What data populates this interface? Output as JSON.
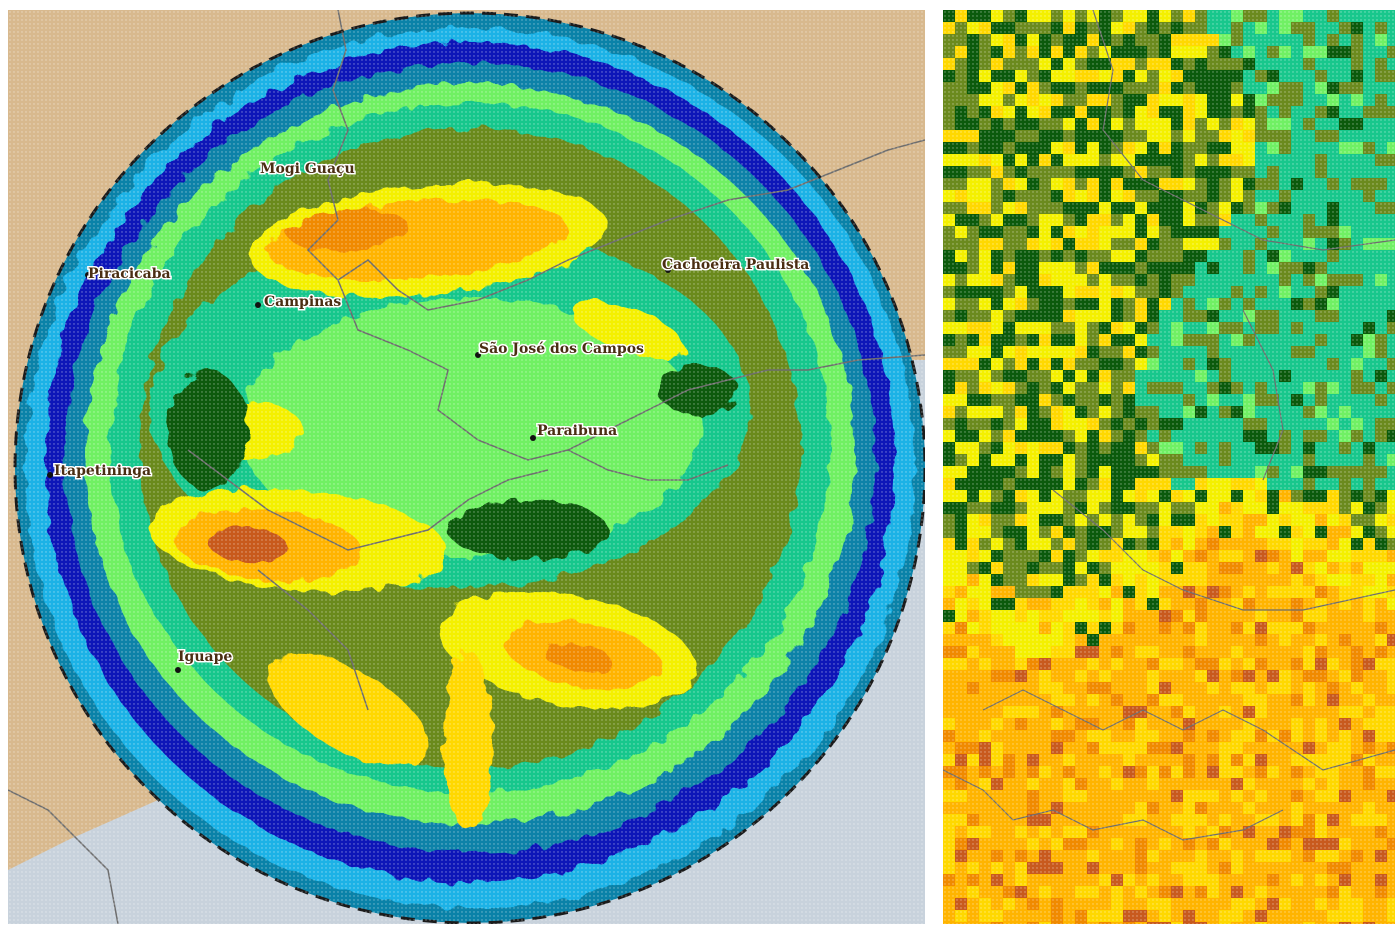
{
  "colors": {
    "land": "#d8b98e",
    "ocean": "#c8d2dc",
    "border": "#6e6e6e",
    "range_ring": "#1b1b1b",
    "levels": [
      "#c6f5f8",
      "#1ab2e6",
      "#0a82a8",
      "#0a14b8",
      "#19a070",
      "#18c78c",
      "#70f064",
      "#6b8a1e",
      "#0b5a0c",
      "#f4f000",
      "#ffd800",
      "#ffb400",
      "#f08a00",
      "#c85a1e"
    ]
  },
  "cities": [
    {
      "name": "Mogi Guaçu"
    },
    {
      "name": "Piracicaba"
    },
    {
      "name": "Campinas"
    },
    {
      "name": "Cachoeira Paulista"
    },
    {
      "name": "São José dos Campos"
    },
    {
      "name": "Paraibuna"
    },
    {
      "name": "Itapetininga"
    },
    {
      "name": "Iguape"
    }
  ]
}
